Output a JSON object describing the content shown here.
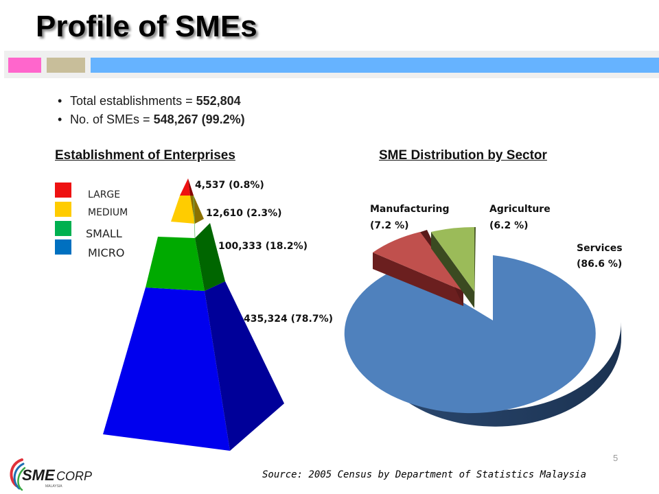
{
  "title": "Profile of SMEs",
  "bullets": [
    {
      "label": "Total establishments =",
      "value": "552,804"
    },
    {
      "label": "No. of SMEs =",
      "value": "548,267 (99.2%)"
    }
  ],
  "logo": {
    "text_sme": "SME",
    "text_corp": "CORP",
    "text_country": "MALAYSIA"
  },
  "page_number": "5",
  "source": "Source: 2005 Census by Department of Statistics Malaysia",
  "colors": {
    "large": "#ee1111",
    "medium": "#ffcc00",
    "small": "#00b050",
    "micro": "#0070c0",
    "pyramid_micro": "#0000ee",
    "pyramid_small": "#00aa00",
    "pyramid_medium": "#ffcc00",
    "pyramid_large": "#ee1111",
    "services": "#4f81bd",
    "manufacturing": "#c0504d",
    "agriculture": "#9bbb59"
  },
  "chart_data": [
    {
      "type": "pyramid",
      "title": "Establishment of Enterprises",
      "legend": [
        "LARGE",
        "MEDIUM",
        "SMALL",
        "MICRO"
      ],
      "categories": [
        "MICRO",
        "SMALL",
        "MEDIUM",
        "LARGE"
      ],
      "values": [
        435324,
        100333,
        12610,
        4537
      ],
      "labels": [
        "435,324 (78.7%)",
        "100,333 (18.2%)",
        "12,610 (2.3%)",
        "4,537 (0.8%)"
      ]
    },
    {
      "type": "pie",
      "title": "SME Distribution by Sector",
      "categories": [
        "Services",
        "Manufacturing",
        "Agriculture"
      ],
      "values": [
        86.6,
        7.2,
        6.2
      ],
      "labels": [
        {
          "name": "Services",
          "value": "(86.6 %)"
        },
        {
          "name": "Manufacturing",
          "value": "(7.2 %)"
        },
        {
          "name": "Agriculture",
          "value": "(6.2 %)"
        }
      ]
    }
  ]
}
